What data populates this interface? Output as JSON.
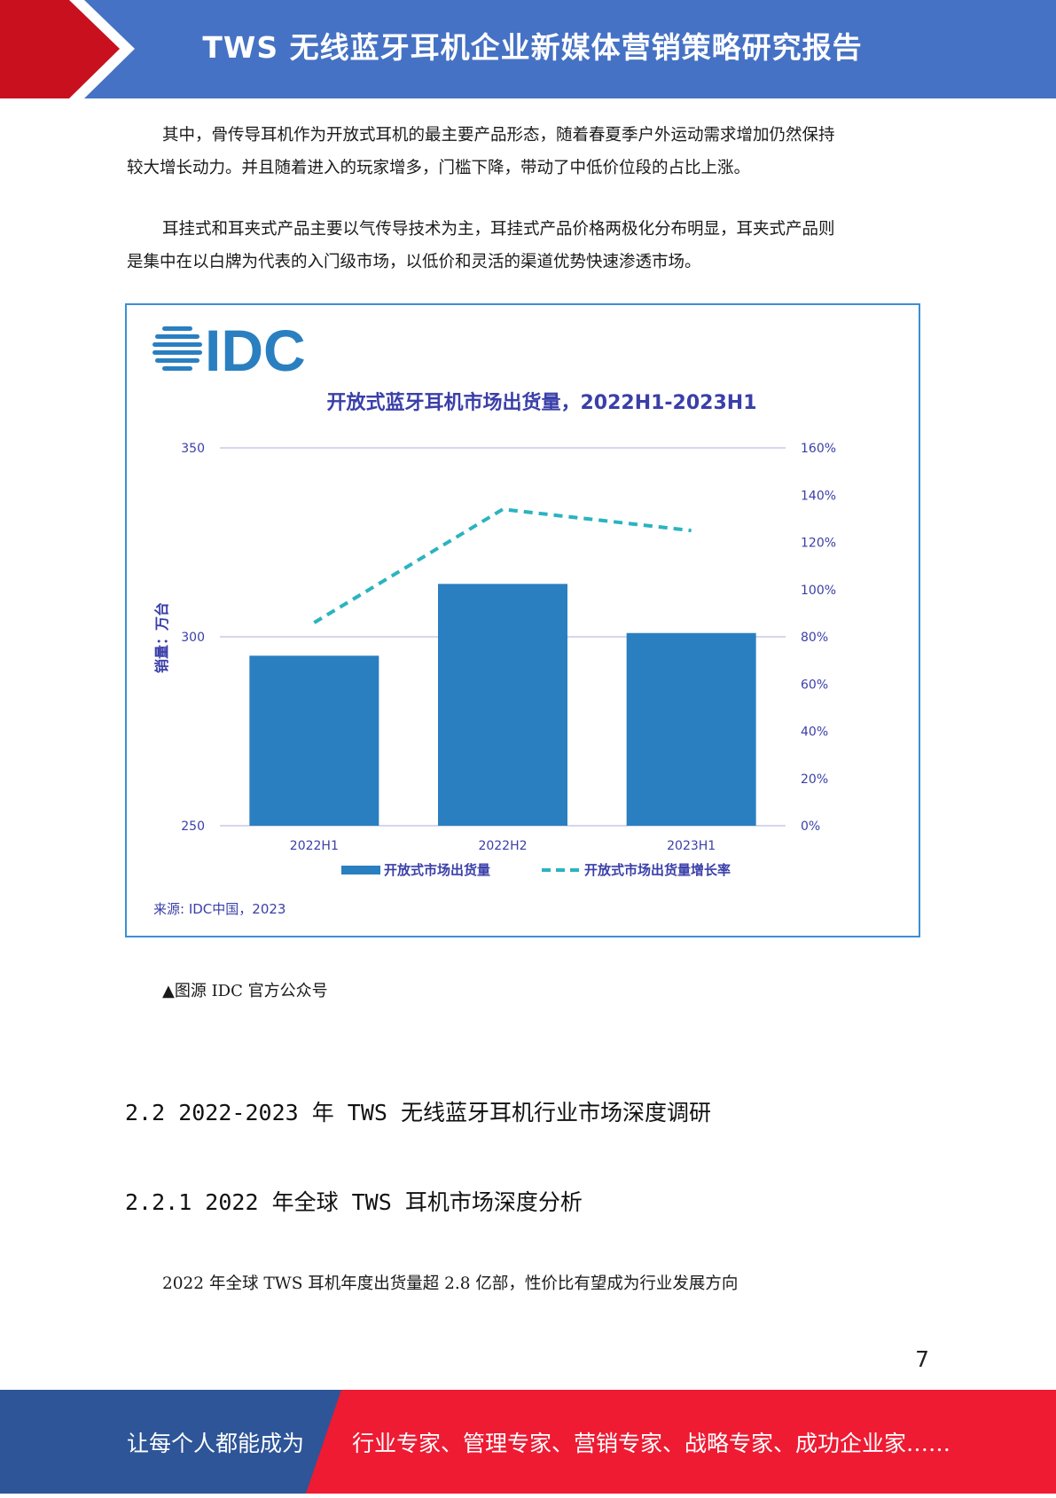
{
  "header": {
    "title": "TWS 无线蓝牙耳机企业新媒体营销策略研究报告",
    "colors": {
      "blue": "#4572c4",
      "red": "#c8101e"
    }
  },
  "paragraphs": [
    {
      "line1": "其中，骨传导耳机作为开放式耳机的最主要产品形态，随着春夏季户外运动需求增加仍然保持",
      "line2": "较大增长动力。并且随着进入的玩家增多，门槛下降，带动了中低价位段的占比上涨。"
    },
    {
      "line1": "耳挂式和耳夹式产品主要以气传导技术为主，耳挂式产品价格两极化分布明显，耳夹式产品则",
      "line2": "是集中在以白牌为代表的入门级市场，以低价和灵活的渠道优势快速渗透市场。"
    }
  ],
  "chart_data": {
    "type": "bar",
    "logo_text": "IDC",
    "title": "开放式蓝牙耳机市场出货量，2022H1-2023H1",
    "categories": [
      "2022H1",
      "2022H2",
      "2023H1"
    ],
    "series": [
      {
        "name": "开放式市场出货量",
        "type": "bar",
        "axis": "left",
        "values": [
          295,
          314,
          301
        ],
        "color": "#2a7fc1"
      },
      {
        "name": "开放式市场出货量增长率",
        "type": "line",
        "style": "dashed",
        "axis": "right",
        "values": [
          86,
          134,
          125
        ],
        "color": "#2bb3c0"
      }
    ],
    "ylabel": "销量：万台",
    "ylim": [
      250,
      350
    ],
    "yticks": [
      "250",
      "300",
      "350"
    ],
    "y2lim": [
      0,
      160
    ],
    "y2ticks": [
      "0%",
      "20%",
      "40%",
      "60%",
      "80%",
      "100%",
      "120%",
      "140%",
      "160%"
    ],
    "source": "来源: IDC中国，2023",
    "legend_position": "bottom",
    "grid": true,
    "text_color": "#3a3fa8"
  },
  "caption": "▲图源 IDC 官方公众号",
  "headings": {
    "h1": "2.2 2022-2023 年 TWS 无线蓝牙耳机行业市场深度调研",
    "h2": "2.2.1 2022 年全球 TWS 耳机市场深度分析"
  },
  "body_line": "2022 年全球 TWS 耳机年度出货量超 2.8 亿部，性价比有望成为行业发展方向",
  "page_number": "7",
  "footer": {
    "left_text": "让每个人都能成为",
    "right_text": "行业专家、管理专家、营销专家、战略专家、成功企业家……",
    "colors": {
      "blue": "#2e5597",
      "red": "#ee1b33"
    }
  }
}
